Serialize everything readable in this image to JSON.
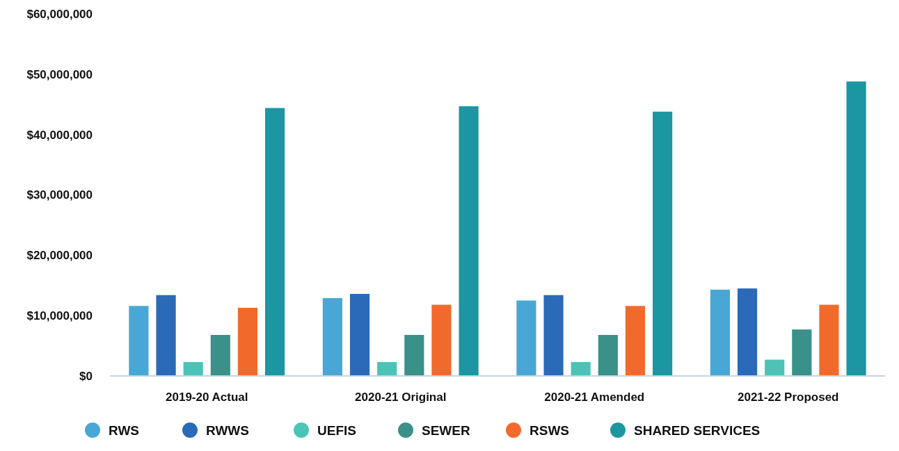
{
  "chart_data": {
    "type": "bar",
    "categories": [
      "2019-20 Actual",
      "2020-21 Original",
      "2020-21 Amended",
      "2021-22 Proposed"
    ],
    "series": [
      {
        "name": "RWS",
        "color": "#48a7d5",
        "values": [
          11600000,
          12900000,
          12500000,
          14300000
        ]
      },
      {
        "name": "RWWS",
        "color": "#2a6ab6",
        "values": [
          13400000,
          13600000,
          13400000,
          14500000
        ]
      },
      {
        "name": "UEFIS",
        "color": "#4bc4b7",
        "values": [
          2300000,
          2300000,
          2300000,
          2700000
        ]
      },
      {
        "name": "SEWER",
        "color": "#39918a",
        "values": [
          6800000,
          6800000,
          6800000,
          7700000
        ]
      },
      {
        "name": "RSWS",
        "color": "#f26a2b",
        "values": [
          11300000,
          11800000,
          11600000,
          11800000
        ]
      },
      {
        "name": "SHARED SERVICES",
        "color": "#1b96a2",
        "values": [
          44400000,
          44700000,
          43800000,
          48800000
        ]
      }
    ],
    "ylim": [
      0,
      60000000
    ],
    "yticks": [
      {
        "value": 0,
        "label": "$0"
      },
      {
        "value": 10000000,
        "label": "$10,000,000"
      },
      {
        "value": 20000000,
        "label": "$20,000,000"
      },
      {
        "value": 30000000,
        "label": "$30,000,000"
      },
      {
        "value": 40000000,
        "label": "$40,000,000"
      },
      {
        "value": 50000000,
        "label": "$50,000,000"
      },
      {
        "value": 60000000,
        "label": "$60,000,000"
      }
    ],
    "grid": false,
    "legend": "bottom"
  }
}
